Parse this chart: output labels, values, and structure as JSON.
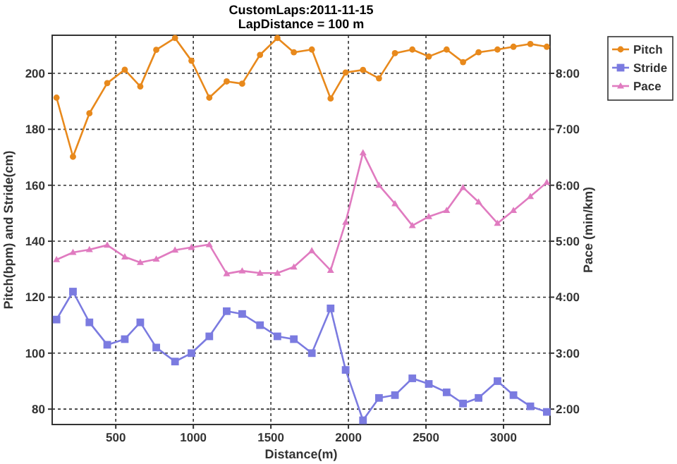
{
  "chart_data": {
    "type": "line",
    "title": "CustomLaps:2011-11-15",
    "subtitle": "LapDistance = 100 m",
    "xlabel": "Distance(m)",
    "ylabel": "Pitch(bpm) and Stride(cm)",
    "y2label": "Pace (min/km)",
    "x": [
      118,
      224,
      330,
      445,
      558,
      658,
      761,
      882,
      988,
      1103,
      1215,
      1315,
      1430,
      1542,
      1648,
      1764,
      1885,
      1982,
      2094,
      2197,
      2300,
      2412,
      2518,
      2633,
      2739,
      2839,
      2961,
      3064,
      3173,
      3279
    ],
    "series": [
      {
        "name": "Pitch",
        "color": "#e8891c",
        "marker": "circle",
        "values": [
          191.3,
          170.2,
          185.7,
          196.5,
          201.3,
          195.3,
          208.4,
          212.6,
          204.5,
          191.3,
          197.1,
          196.3,
          206.6,
          212.6,
          207.5,
          208.5,
          191,
          200.3,
          201.2,
          198.2,
          207.2,
          208.5,
          206,
          208.5,
          204,
          207.5,
          208.5,
          209.5,
          210.5,
          209.5
        ]
      },
      {
        "name": "Stride",
        "color": "#7b7be0",
        "marker": "square",
        "values": [
          112,
          122,
          111,
          103,
          105,
          111,
          102,
          97,
          100,
          106,
          115,
          114,
          110,
          106,
          105,
          100,
          116,
          94,
          76,
          84,
          85,
          91,
          89,
          86,
          82,
          84,
          90,
          85,
          81,
          79
        ]
      },
      {
        "name": "Pace",
        "color": "#e07bc0",
        "marker": "triangle",
        "axis": "y2",
        "values": [
          4.67,
          4.8,
          4.85,
          4.93,
          4.72,
          4.62,
          4.68,
          4.84,
          4.89,
          4.94,
          4.42,
          4.47,
          4.43,
          4.43,
          4.54,
          4.83,
          4.48,
          5.34,
          6.58,
          6,
          5.67,
          5.28,
          5.44,
          5.55,
          5.96,
          5.7,
          5.32,
          5.55,
          5.8,
          6.05
        ]
      }
    ],
    "xlim": [
      90,
      3300
    ],
    "xticks": [
      500,
      1000,
      1500,
      2000,
      2500,
      3000
    ],
    "ylim": [
      74.5,
      213.6
    ],
    "yticks": [
      80,
      100,
      120,
      140,
      160,
      180,
      200
    ],
    "y2lim": [
      1.725,
      8.68
    ],
    "y2ticks": [
      {
        "value": 2,
        "label": "2:00"
      },
      {
        "value": 3,
        "label": "3:00"
      },
      {
        "value": 4,
        "label": "4:00"
      },
      {
        "value": 5,
        "label": "5:00"
      },
      {
        "value": 6,
        "label": "6:00"
      },
      {
        "value": 7,
        "label": "7:00"
      },
      {
        "value": 8,
        "label": "8:00"
      }
    ],
    "grid": true,
    "legend": "top right",
    "line_style": "solid"
  }
}
